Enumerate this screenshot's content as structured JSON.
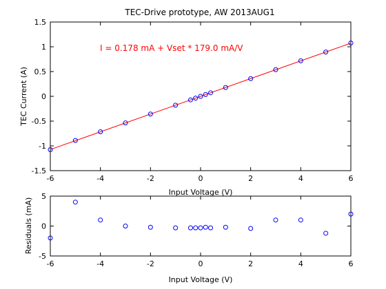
{
  "chart_data": [
    {
      "type": "scatter",
      "title": "TEC-Drive prototype, AW 2013AUG1",
      "xlabel": "Input Voltage (V)",
      "ylabel": "TEC Current (A)",
      "xlim": [
        -6,
        6
      ],
      "ylim": [
        -1.5,
        1.5
      ],
      "xticks": [
        "-6",
        "-4",
        "-2",
        "0",
        "2",
        "4",
        "6"
      ],
      "yticks": [
        "-1.5",
        "-1",
        "-0.5",
        "0",
        "0.5",
        "1",
        "1.5"
      ],
      "annotation": "I = 0.178 mA + Vset * 179.0 mA/V",
      "fit_line": {
        "intercept": 0.000178,
        "slope": 0.179,
        "color": "#ff0000"
      },
      "marker_color": "#0000ff",
      "series": [
        {
          "x": [
            -6,
            -5,
            -4,
            -3,
            -2,
            -1,
            -0.4,
            -0.2,
            0,
            0.2,
            0.4,
            1,
            2,
            3,
            4,
            5,
            6
          ],
          "y": [
            -1.076,
            -0.891,
            -0.715,
            -0.537,
            -0.358,
            -0.179,
            -0.072,
            -0.036,
            0.0,
            0.036,
            0.072,
            0.179,
            0.358,
            0.538,
            0.717,
            0.894,
            1.076
          ]
        }
      ]
    },
    {
      "type": "scatter",
      "xlabel": "Input Voltage (V)",
      "ylabel": "Residuals (mA)",
      "xlim": [
        -6,
        6
      ],
      "ylim": [
        -5,
        5
      ],
      "xticks": [
        "-6",
        "-4",
        "-2",
        "0",
        "2",
        "4",
        "6"
      ],
      "yticks": [
        "-5",
        "0",
        "5"
      ],
      "marker_color": "#0000ff",
      "series": [
        {
          "x": [
            -6,
            -5,
            -4,
            -3,
            -2,
            -1,
            -0.4,
            -0.2,
            0,
            0.2,
            0.4,
            1,
            2,
            3,
            4,
            5,
            6
          ],
          "y": [
            -2,
            4,
            1,
            0,
            -0.2,
            -0.3,
            -0.3,
            -0.3,
            -0.3,
            -0.2,
            -0.3,
            -0.2,
            -0.4,
            1,
            1,
            -1.2,
            2
          ]
        }
      ]
    }
  ]
}
